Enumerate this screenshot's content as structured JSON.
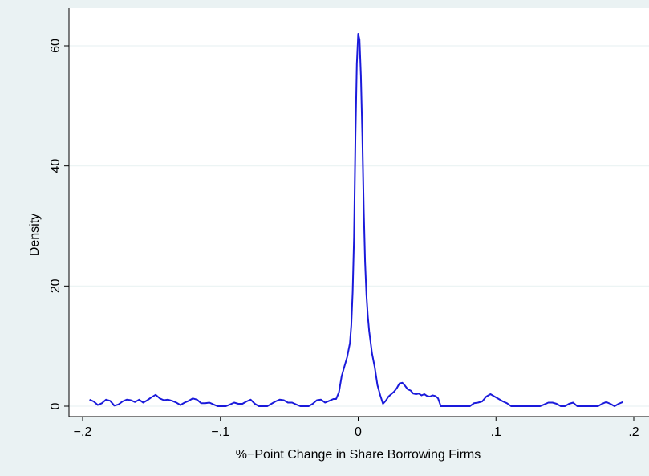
{
  "chart_data": {
    "type": "line",
    "title": "",
    "xlabel": "%−Point Change in Share Borrowing Firms",
    "ylabel": "Density",
    "xlim": [
      -0.2,
      0.2
    ],
    "ylim": [
      0,
      62
    ],
    "grid": true,
    "legend": "none",
    "x_ticks": [
      {
        "value": -0.2,
        "label": "−.2"
      },
      {
        "value": -0.1,
        "label": "−.1"
      },
      {
        "value": 0,
        "label": "0"
      },
      {
        "value": 0.1,
        "label": ".1"
      },
      {
        "value": 0.2,
        "label": ".2"
      }
    ],
    "y_ticks": [
      {
        "value": 0,
        "label": "0"
      },
      {
        "value": 20,
        "label": "20"
      },
      {
        "value": 40,
        "label": "40"
      },
      {
        "value": 60,
        "label": "60"
      }
    ],
    "colors": {
      "background": "#eaf2f3",
      "plot_area": "#ffffff",
      "grid": "#eaf2f3",
      "line": "#1a1adb",
      "axis": "#000000"
    },
    "series": [
      {
        "x": [
          -0.195,
          -0.192,
          -0.189,
          -0.186,
          -0.183,
          -0.18,
          -0.177,
          -0.174,
          -0.171,
          -0.168,
          -0.165,
          -0.162,
          -0.159,
          -0.156,
          -0.153,
          -0.15,
          -0.147,
          -0.144,
          -0.141,
          -0.138,
          -0.135,
          -0.132,
          -0.129,
          -0.126,
          -0.123,
          -0.12,
          -0.117,
          -0.114,
          -0.111,
          -0.108,
          -0.105,
          -0.102,
          -0.099,
          -0.096,
          -0.093,
          -0.09,
          -0.087,
          -0.084,
          -0.081,
          -0.078,
          -0.075,
          -0.072,
          -0.069,
          -0.066,
          -0.063,
          -0.06,
          -0.057,
          -0.054,
          -0.051,
          -0.048,
          -0.045,
          -0.042,
          -0.039,
          -0.036,
          -0.033,
          -0.03,
          -0.027,
          -0.024,
          -0.021,
          -0.018,
          -0.016,
          -0.014,
          -0.012,
          -0.01,
          -0.008,
          -0.006,
          -0.005,
          -0.004,
          -0.003,
          -0.002,
          -0.001,
          0.0,
          0.001,
          0.002,
          0.003,
          0.004,
          0.005,
          0.006,
          0.007,
          0.008,
          0.01,
          0.012,
          0.014,
          0.016,
          0.018,
          0.02,
          0.022,
          0.024,
          0.026,
          0.028,
          0.03,
          0.032,
          0.034,
          0.036,
          0.038,
          0.04,
          0.042,
          0.044,
          0.046,
          0.048,
          0.05,
          0.052,
          0.054,
          0.056,
          0.058,
          0.06,
          0.063,
          0.066,
          0.069,
          0.072,
          0.075,
          0.078,
          0.081,
          0.084,
          0.087,
          0.09,
          0.093,
          0.096,
          0.099,
          0.102,
          0.105,
          0.108,
          0.111,
          0.114,
          0.117,
          0.12,
          0.123,
          0.126,
          0.129,
          0.132,
          0.135,
          0.138,
          0.141,
          0.144,
          0.147,
          0.15,
          0.153,
          0.156,
          0.159,
          0.162,
          0.165,
          0.168,
          0.171,
          0.174,
          0.177,
          0.18,
          0.183,
          0.186,
          0.189,
          0.192
        ],
        "y": [
          1.1,
          0.8,
          0.2,
          0.5,
          1.1,
          0.9,
          0.1,
          0.3,
          0.8,
          1.1,
          1.0,
          0.7,
          1.1,
          0.6,
          1.0,
          1.5,
          1.9,
          1.3,
          1.0,
          1.1,
          0.9,
          0.6,
          0.2,
          0.6,
          0.9,
          1.3,
          1.1,
          0.5,
          0.5,
          0.6,
          0.3,
          0.0,
          0.0,
          0.0,
          0.3,
          0.6,
          0.4,
          0.4,
          0.8,
          1.1,
          0.4,
          0.0,
          0.0,
          0.0,
          0.4,
          0.8,
          1.1,
          1.0,
          0.6,
          0.6,
          0.3,
          0.0,
          0.0,
          0.0,
          0.4,
          1.0,
          1.1,
          0.6,
          0.9,
          1.2,
          1.2,
          2.3,
          5.0,
          6.6,
          8.2,
          10.5,
          13.5,
          19.0,
          28.0,
          45.0,
          57.0,
          62.0,
          61.0,
          55.0,
          45.0,
          33.0,
          24.0,
          18.5,
          15.0,
          12.5,
          8.8,
          6.5,
          3.5,
          1.8,
          0.4,
          0.9,
          1.6,
          2.0,
          2.4,
          3.0,
          3.8,
          3.9,
          3.4,
          2.8,
          2.6,
          2.1,
          2.0,
          2.1,
          1.8,
          2.0,
          1.7,
          1.6,
          1.8,
          1.7,
          1.3,
          0.0,
          0.0,
          0.0,
          0.0,
          0.0,
          0.0,
          0.0,
          0.0,
          0.5,
          0.6,
          0.8,
          1.6,
          2.0,
          1.6,
          1.2,
          0.8,
          0.5,
          0.0,
          0.0,
          0.0,
          0.0,
          0.0,
          0.0,
          0.0,
          0.0,
          0.3,
          0.6,
          0.6,
          0.4,
          0.0,
          0.0,
          0.4,
          0.6,
          0.0,
          0.0,
          0.0,
          0.0,
          0.0,
          0.0,
          0.4,
          0.7,
          0.4,
          0.0,
          0.4,
          0.7
        ]
      }
    ]
  }
}
